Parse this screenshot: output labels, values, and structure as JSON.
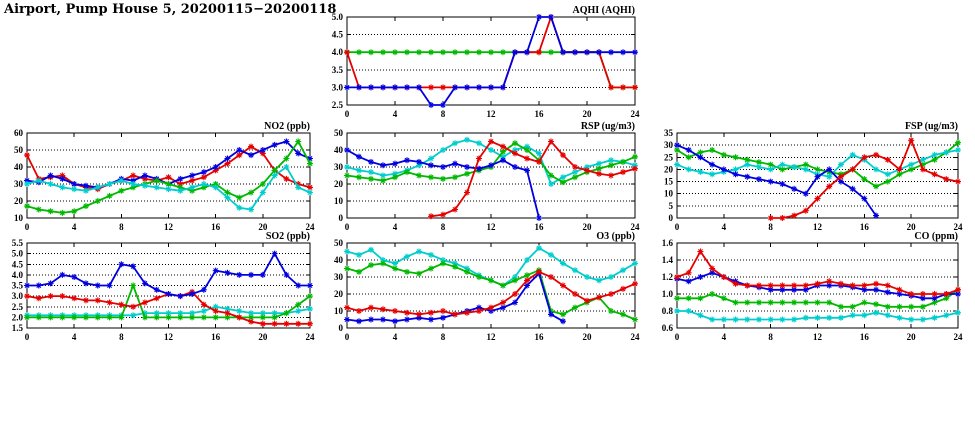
{
  "page": {
    "title": "Airport, Pump House 5, 20200115−20200118"
  },
  "palette": {
    "red": "#e60000",
    "green": "#00b800",
    "blue": "#0000e0",
    "cyan": "#00cdcd",
    "axis": "#000000",
    "background": "#ffffff"
  },
  "hours": [
    0,
    1,
    2,
    3,
    4,
    5,
    6,
    7,
    8,
    9,
    10,
    11,
    12,
    13,
    14,
    15,
    16,
    17,
    18,
    19,
    20,
    21,
    22,
    23,
    24
  ],
  "xticks": [
    0,
    4,
    8,
    12,
    16,
    20,
    24
  ],
  "xtick_labels": [
    "0",
    "4",
    "8",
    "12",
    "16",
    "20",
    "24"
  ],
  "chart_data": [
    {
      "id": "aqhi",
      "type": "line",
      "title": "AQHI (AQHI)",
      "ylim": [
        2.5,
        5.0
      ],
      "yticks": [
        2.5,
        3.0,
        3.5,
        4.0,
        4.5,
        5.0
      ],
      "ytick_labels": [
        "2.5",
        "3.0",
        "3.5",
        "4.0",
        "4.5",
        "5.0"
      ],
      "xlim": [
        0,
        24
      ],
      "grid": "horizontal-dotted",
      "legend": "none",
      "series": [
        {
          "name": "green",
          "color": "green",
          "values": [
            4,
            4,
            4,
            4,
            4,
            4,
            4,
            4,
            4,
            4,
            4,
            4,
            4,
            4,
            4,
            4,
            4,
            4,
            4,
            4,
            4,
            4,
            3,
            3,
            3
          ]
        },
        {
          "name": "red",
          "color": "red",
          "values": [
            4,
            3,
            3,
            3,
            3,
            3,
            3,
            3,
            3,
            3,
            3,
            3,
            3,
            3,
            4,
            4,
            4,
            5,
            4,
            4,
            4,
            4,
            3,
            3,
            3
          ]
        },
        {
          "name": "blue",
          "color": "blue",
          "values": [
            3,
            3,
            3,
            3,
            3,
            3,
            3,
            2.5,
            2.5,
            3,
            3,
            3,
            3,
            3,
            4,
            4,
            5,
            5,
            4,
            4,
            4,
            4,
            4,
            4,
            4
          ]
        }
      ]
    },
    {
      "id": "no2",
      "type": "line",
      "title": "NO2 (ppb)",
      "ylim": [
        10,
        60
      ],
      "yticks": [
        10,
        20,
        30,
        40,
        50,
        60
      ],
      "ytick_labels": [
        "10",
        "20",
        "30",
        "40",
        "50",
        "60"
      ],
      "xlim": [
        0,
        24
      ],
      "grid": "horizontal-dotted",
      "legend": "none",
      "series": [
        {
          "name": "red",
          "color": "red",
          "values": [
            47,
            33,
            34,
            35,
            30,
            28,
            27,
            30,
            32,
            35,
            33,
            32,
            34,
            30,
            32,
            34,
            38,
            42,
            47,
            52,
            48,
            38,
            33,
            30,
            28
          ]
        },
        {
          "name": "blue",
          "color": "blue",
          "values": [
            32,
            31,
            35,
            33,
            30,
            29,
            28,
            30,
            33,
            32,
            35,
            33,
            30,
            33,
            35,
            37,
            40,
            45,
            50,
            47,
            50,
            53,
            55,
            48,
            45
          ]
        },
        {
          "name": "green",
          "color": "green",
          "values": [
            17,
            15,
            14,
            13,
            14,
            17,
            20,
            23,
            26,
            28,
            30,
            32,
            30,
            28,
            26,
            28,
            30,
            25,
            22,
            25,
            30,
            38,
            45,
            55,
            42
          ]
        },
        {
          "name": "cyan",
          "color": "cyan",
          "values": [
            30,
            32,
            30,
            28,
            27,
            26,
            28,
            30,
            32,
            30,
            29,
            28,
            27,
            26,
            28,
            30,
            28,
            22,
            16,
            15,
            25,
            35,
            40,
            28,
            25
          ]
        }
      ]
    },
    {
      "id": "rsp",
      "type": "line",
      "title": "RSP (ug/m3)",
      "ylim": [
        0,
        50
      ],
      "yticks": [
        0,
        10,
        20,
        30,
        40,
        50
      ],
      "ytick_labels": [
        "0",
        "10",
        "20",
        "30",
        "40",
        "50"
      ],
      "xlim": [
        0,
        24
      ],
      "grid": "horizontal-dotted",
      "legend": "none",
      "series": [
        {
          "name": "cyan",
          "color": "cyan",
          "values": [
            30,
            28,
            27,
            25,
            26,
            28,
            31,
            35,
            40,
            44,
            46,
            44,
            40,
            36,
            40,
            42,
            38,
            20,
            24,
            27,
            30,
            32,
            34,
            33,
            31
          ]
        },
        {
          "name": "green",
          "color": "green",
          "values": [
            25,
            24,
            23,
            22,
            24,
            27,
            25,
            24,
            23,
            24,
            26,
            28,
            30,
            39,
            44,
            40,
            34,
            25,
            21,
            24,
            27,
            29,
            31,
            33,
            36
          ]
        },
        {
          "name": "blue",
          "color": "blue",
          "values": [
            40,
            36,
            33,
            31,
            32,
            34,
            33,
            31,
            30,
            32,
            30,
            29,
            31,
            34,
            30,
            28,
            0,
            null,
            null,
            null,
            null,
            null,
            null,
            null,
            null
          ]
        },
        {
          "name": "red",
          "color": "red",
          "values": [
            null,
            null,
            null,
            null,
            null,
            null,
            null,
            1,
            2,
            5,
            15,
            35,
            45,
            42,
            38,
            35,
            33,
            45,
            37,
            30,
            28,
            26,
            25,
            27,
            29
          ]
        }
      ]
    },
    {
      "id": "fsp",
      "type": "line",
      "title": "FSP (ug/m3)",
      "ylim": [
        0,
        35
      ],
      "yticks": [
        0,
        5,
        10,
        15,
        20,
        25,
        30,
        35
      ],
      "ytick_labels": [
        "0",
        "5",
        "10",
        "15",
        "20",
        "25",
        "30",
        "35"
      ],
      "xlim": [
        0,
        24
      ],
      "grid": "horizontal-dotted",
      "legend": "none",
      "series": [
        {
          "name": "green",
          "color": "green",
          "values": [
            28,
            25,
            27,
            28,
            26,
            25,
            24,
            23,
            22,
            20,
            21,
            22,
            20,
            19,
            18,
            20,
            16,
            13,
            15,
            18,
            20,
            22,
            24,
            27,
            31
          ]
        },
        {
          "name": "cyan",
          "color": "cyan",
          "values": [
            22,
            20,
            19,
            18,
            19,
            20,
            22,
            21,
            20,
            22,
            21,
            20,
            18,
            17,
            22,
            26,
            24,
            20,
            18,
            20,
            22,
            24,
            26,
            27,
            28
          ]
        },
        {
          "name": "blue",
          "color": "blue",
          "values": [
            30,
            28,
            25,
            22,
            20,
            18,
            17,
            16,
            15,
            14,
            12,
            10,
            17,
            20,
            15,
            12,
            8,
            1,
            null,
            null,
            null,
            null,
            null,
            null,
            null
          ]
        },
        {
          "name": "red",
          "color": "red",
          "values": [
            null,
            null,
            null,
            null,
            null,
            null,
            null,
            null,
            0,
            0,
            1,
            3,
            8,
            13,
            17,
            20,
            25,
            26,
            24,
            20,
            32,
            20,
            18,
            16,
            15
          ]
        }
      ]
    },
    {
      "id": "so2",
      "type": "line",
      "title": "SO2 (ppb)",
      "ylim": [
        1.5,
        5.5
      ],
      "yticks": [
        1.5,
        2.0,
        2.5,
        3.0,
        3.5,
        4.0,
        4.5,
        5.0,
        5.5
      ],
      "ytick_labels": [
        "1.5",
        "2.0",
        "2.5",
        "3.0",
        "3.5",
        "4.0",
        "4.5",
        "5.0",
        "5.5"
      ],
      "xlim": [
        0,
        24
      ],
      "grid": "horizontal-dotted",
      "legend": "none",
      "series": [
        {
          "name": "cyan",
          "color": "cyan",
          "values": [
            2.1,
            2.1,
            2.1,
            2.1,
            2.1,
            2.1,
            2.1,
            2.1,
            2.1,
            2.1,
            2.2,
            2.2,
            2.2,
            2.2,
            2.2,
            2.3,
            2.5,
            2.4,
            2.3,
            2.2,
            2.2,
            2.2,
            2.2,
            2.3,
            2.4
          ]
        },
        {
          "name": "green",
          "color": "green",
          "values": [
            2.0,
            2.0,
            2.0,
            2.0,
            2.0,
            2.0,
            2.0,
            2.0,
            2.0,
            3.5,
            2.0,
            2.0,
            2.0,
            2.0,
            2.0,
            2.0,
            2.0,
            2.0,
            2.0,
            2.0,
            2.0,
            2.0,
            2.2,
            2.6,
            3.0
          ]
        },
        {
          "name": "red",
          "color": "red",
          "values": [
            3.0,
            2.9,
            3.0,
            3.0,
            2.9,
            2.8,
            2.8,
            2.7,
            2.6,
            2.5,
            2.7,
            2.9,
            3.1,
            3.0,
            3.2,
            2.6,
            2.3,
            2.2,
            2.0,
            1.8,
            1.7,
            1.7,
            1.7,
            1.7,
            1.7
          ]
        },
        {
          "name": "blue",
          "color": "blue",
          "values": [
            3.5,
            3.5,
            3.6,
            4.0,
            3.9,
            3.6,
            3.5,
            3.5,
            4.5,
            4.4,
            3.6,
            3.3,
            3.1,
            3.0,
            3.1,
            3.3,
            4.2,
            4.1,
            4.0,
            4.0,
            4.0,
            5.0,
            4.0,
            3.5,
            3.5
          ]
        }
      ]
    },
    {
      "id": "o3",
      "type": "line",
      "title": "O3 (ppb)",
      "ylim": [
        0,
        50
      ],
      "yticks": [
        0,
        10,
        20,
        30,
        40,
        50
      ],
      "ytick_labels": [
        "0",
        "10",
        "20",
        "30",
        "40",
        "50"
      ],
      "xlim": [
        0,
        24
      ],
      "grid": "horizontal-dotted",
      "legend": "none",
      "series": [
        {
          "name": "cyan",
          "color": "cyan",
          "values": [
            45,
            43,
            46,
            40,
            38,
            42,
            45,
            43,
            40,
            38,
            35,
            31,
            28,
            25,
            30,
            40,
            47,
            43,
            38,
            34,
            30,
            28,
            30,
            34,
            38
          ]
        },
        {
          "name": "green",
          "color": "green",
          "values": [
            35,
            33,
            37,
            38,
            35,
            33,
            32,
            35,
            38,
            36,
            33,
            30,
            28,
            25,
            28,
            31,
            34,
            10,
            8,
            12,
            15,
            18,
            10,
            8,
            5
          ]
        },
        {
          "name": "blue",
          "color": "blue",
          "values": [
            5,
            4,
            5,
            5,
            4,
            5,
            6,
            5,
            6,
            8,
            10,
            12,
            10,
            12,
            15,
            25,
            32,
            8,
            4,
            null,
            null,
            null,
            null,
            null,
            null
          ]
        },
        {
          "name": "red",
          "color": "red",
          "values": [
            12,
            10,
            12,
            11,
            10,
            9,
            8,
            9,
            10,
            8,
            9,
            10,
            12,
            15,
            20,
            28,
            33,
            30,
            25,
            20,
            16,
            18,
            20,
            23,
            26
          ]
        }
      ]
    },
    {
      "id": "co",
      "type": "line",
      "title": "CO (ppm)",
      "ylim": [
        0.6,
        1.6
      ],
      "yticks": [
        0.6,
        0.8,
        1.0,
        1.2,
        1.4,
        1.6
      ],
      "ytick_labels": [
        "0.6",
        "0.8",
        "1.0",
        "1.2",
        "1.4",
        "1.6"
      ],
      "xlim": [
        0,
        24
      ],
      "grid": "horizontal-dotted",
      "legend": "none",
      "series": [
        {
          "name": "cyan",
          "color": "cyan",
          "values": [
            0.8,
            0.8,
            0.75,
            0.7,
            0.7,
            0.7,
            0.7,
            0.7,
            0.7,
            0.7,
            0.7,
            0.72,
            0.72,
            0.72,
            0.72,
            0.75,
            0.75,
            0.78,
            0.75,
            0.72,
            0.7,
            0.7,
            0.72,
            0.75,
            0.78
          ]
        },
        {
          "name": "green",
          "color": "green",
          "values": [
            0.95,
            0.95,
            0.95,
            1.0,
            0.95,
            0.9,
            0.9,
            0.9,
            0.9,
            0.9,
            0.9,
            0.9,
            0.9,
            0.9,
            0.85,
            0.85,
            0.9,
            0.88,
            0.85,
            0.85,
            0.85,
            0.85,
            0.9,
            0.95,
            1.05
          ]
        },
        {
          "name": "blue",
          "color": "blue",
          "values": [
            1.18,
            1.15,
            1.2,
            1.25,
            1.2,
            1.15,
            1.1,
            1.08,
            1.05,
            1.05,
            1.05,
            1.05,
            1.1,
            1.1,
            1.1,
            1.08,
            1.05,
            1.05,
            1.02,
            1.0,
            0.98,
            0.95,
            0.95,
            1.0,
            1.0
          ]
        },
        {
          "name": "red",
          "color": "red",
          "values": [
            1.2,
            1.25,
            1.5,
            1.3,
            1.2,
            1.12,
            1.1,
            1.1,
            1.1,
            1.1,
            1.1,
            1.1,
            1.12,
            1.15,
            1.12,
            1.1,
            1.1,
            1.12,
            1.1,
            1.05,
            1.0,
            1.0,
            1.0,
            1.0,
            1.05
          ]
        }
      ]
    }
  ]
}
